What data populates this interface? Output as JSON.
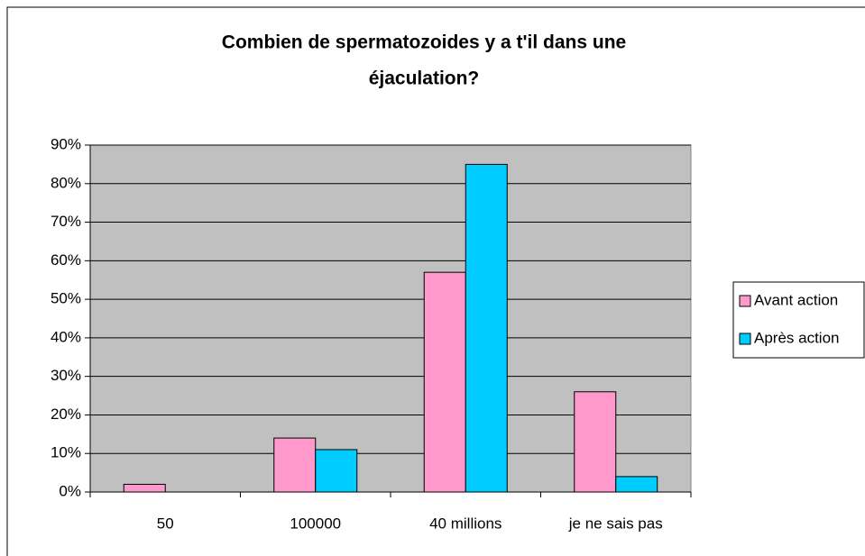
{
  "chart_data": {
    "type": "bar",
    "title": "Combien de spermatozoides y a t'il dans une éjaculation?",
    "categories": [
      "50",
      "100000",
      "40 millions",
      "je ne sais pas"
    ],
    "series": [
      {
        "name": "Avant action",
        "color": "#ff99cc",
        "values": [
          2,
          14,
          57,
          26
        ]
      },
      {
        "name": "Après action",
        "color": "#00ccff",
        "values": [
          0,
          11,
          85,
          4
        ]
      }
    ],
    "ylim": [
      0,
      90
    ],
    "yticks": [
      {
        "value": 0,
        "label": "0%"
      },
      {
        "value": 10,
        "label": "10%"
      },
      {
        "value": 20,
        "label": "20%"
      },
      {
        "value": 30,
        "label": "30%"
      },
      {
        "value": 40,
        "label": "40%"
      },
      {
        "value": 50,
        "label": "50%"
      },
      {
        "value": 60,
        "label": "60%"
      },
      {
        "value": 70,
        "label": "70%"
      },
      {
        "value": 80,
        "label": "80%"
      },
      {
        "value": 90,
        "label": "90%"
      }
    ],
    "grid": true,
    "legend": "right"
  }
}
